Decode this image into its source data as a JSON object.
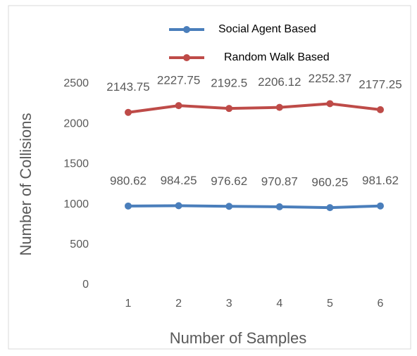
{
  "chart_data": {
    "type": "line",
    "xlabel": "Number of Samples",
    "ylabel": "Number of Collisions",
    "categories": [
      "1",
      "2",
      "3",
      "4",
      "5",
      "6"
    ],
    "series": [
      {
        "name": "Social Agent Based",
        "color": "#4a7ebb",
        "values": [
          980.62,
          984.25,
          976.62,
          970.87,
          960.25,
          981.62
        ]
      },
      {
        "name": "Random Walk Based",
        "color": "#be4b48",
        "values": [
          2143.75,
          2227.75,
          2192.5,
          2206.12,
          2252.37,
          2177.25
        ]
      }
    ],
    "ylim": [
      0,
      2500
    ],
    "yticks": [
      0,
      500,
      1000,
      1500,
      2000,
      2500
    ],
    "grid": false,
    "legend": "top"
  }
}
